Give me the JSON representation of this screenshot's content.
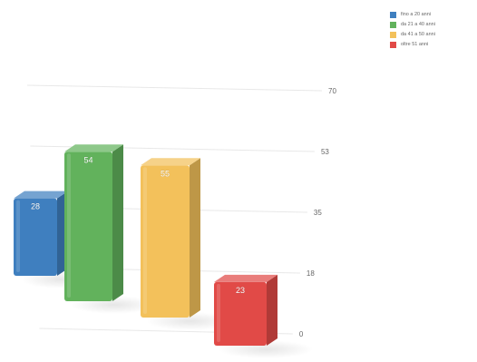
{
  "chart_data": {
    "type": "bar",
    "categories": [
      "fino a 20 anni",
      "da 21 a 40 anni",
      "da 41 a 50 anni",
      "oltre 51 anni"
    ],
    "values": [
      28,
      54,
      55,
      23
    ],
    "ylim": [
      0,
      70
    ],
    "yticks": [
      "0",
      "18",
      "35",
      "53",
      "70"
    ],
    "grid": true,
    "legend": "top-right",
    "colors": [
      "#3f7fbf",
      "#62b25c",
      "#f3c15b",
      "#e14a47"
    ],
    "title": "",
    "xlabel": "",
    "ylabel": ""
  }
}
